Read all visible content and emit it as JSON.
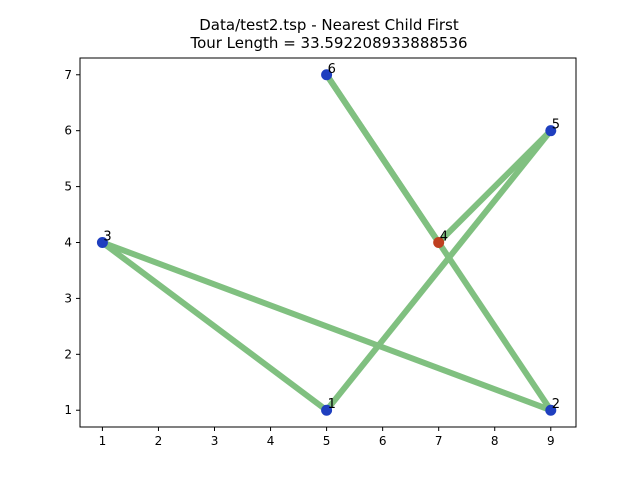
{
  "chart_data": {
    "type": "scatter",
    "title_lines": [
      "Data/test2.tsp - Nearest Child First",
      "Tour Length = 33.592208933888536"
    ],
    "xlabel": "",
    "ylabel": "",
    "xlim": [
      0.6,
      9.45
    ],
    "ylim": [
      0.7,
      7.3
    ],
    "x_ticks": [
      1,
      2,
      3,
      4,
      5,
      6,
      7,
      8,
      9
    ],
    "y_ticks": [
      1,
      2,
      3,
      4,
      5,
      6,
      7
    ],
    "grid": false,
    "points": [
      {
        "label": "1",
        "x": 5,
        "y": 1,
        "color": "#1f3fbf"
      },
      {
        "label": "2",
        "x": 9,
        "y": 1,
        "color": "#1f3fbf"
      },
      {
        "label": "3",
        "x": 1,
        "y": 4,
        "color": "#1f3fbf"
      },
      {
        "label": "4",
        "x": 7,
        "y": 4,
        "color": "#bf3f1f"
      },
      {
        "label": "5",
        "x": 9,
        "y": 6,
        "color": "#1f3fbf"
      },
      {
        "label": "6",
        "x": 5,
        "y": 7,
        "color": "#1f3fbf"
      }
    ],
    "tour": [
      "4",
      "6",
      "2",
      "3",
      "1",
      "5",
      "4"
    ],
    "edge_color": "#80c080"
  }
}
